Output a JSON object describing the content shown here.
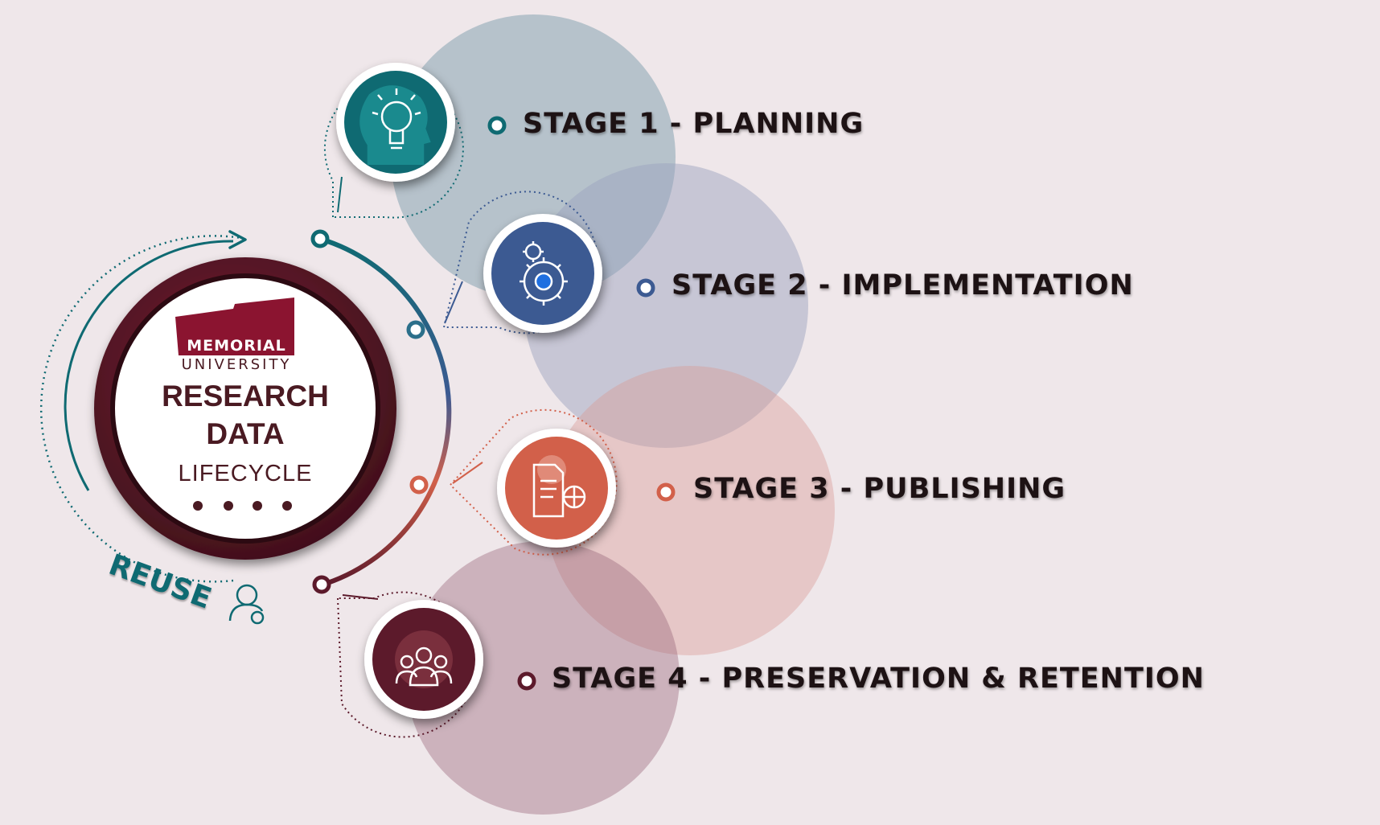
{
  "logo": {
    "line1": "MEMORIAL",
    "line2": "UNIVERSITY"
  },
  "center": {
    "title_line1": "RESEARCH",
    "title_line2": "DATA",
    "subtitle": "LIFECYCLE"
  },
  "reuse_label": "REUSE",
  "stages": [
    {
      "label": "STAGE 1 - PLANNING",
      "icon": "lightbulb-head-icon",
      "color": "#0f6a72"
    },
    {
      "label": "STAGE 2 - IMPLEMENTATION",
      "icon": "gears-icon",
      "color": "#3c5a92"
    },
    {
      "label": "STAGE 3 - PUBLISHING",
      "icon": "document-globe-icon",
      "color": "#d2604a"
    },
    {
      "label": "STAGE 4 - PRESERVATION & RETENTION",
      "icon": "people-globe-icon",
      "color": "#5c1a2b"
    }
  ],
  "colors": {
    "background": "#efe7ea",
    "maroon": "#5c1a2b",
    "teal": "#0f6a72",
    "blue": "#3c5a92",
    "coral": "#d2604a",
    "brand": "#8b1430"
  }
}
